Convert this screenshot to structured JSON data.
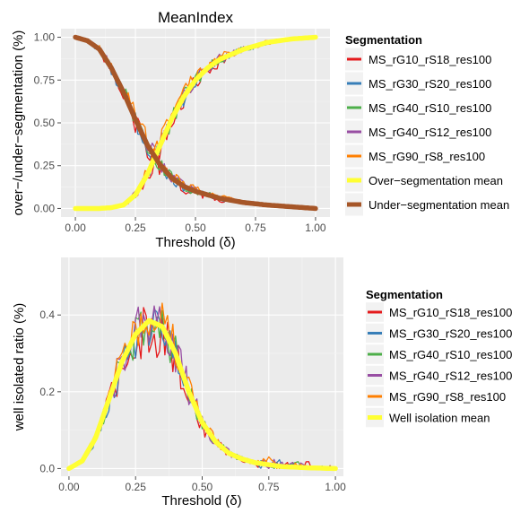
{
  "chart_data": [
    {
      "type": "line",
      "title": "MeanIndex",
      "xlabel": "Threshold (δ)",
      "ylabel": "over−/under−segmentation (%)",
      "xlim": [
        0,
        1
      ],
      "ylim": [
        -0.05,
        1.05
      ],
      "x_ticks": [
        "0.00",
        "0.25",
        "0.50",
        "0.75",
        "1.00"
      ],
      "y_ticks": [
        "0.00",
        "0.25",
        "0.50",
        "0.75",
        "1.00"
      ],
      "grid": true,
      "legend_position": "right",
      "legend_title": "Segmentation",
      "series": [
        {
          "name": "MS_rG10_rS18_res100",
          "color": "#e41a1c",
          "kind": "segmentation",
          "noise": 0.06
        },
        {
          "name": "MS_rG30_rS20_res100",
          "color": "#377eb8",
          "kind": "segmentation",
          "noise": 0.05
        },
        {
          "name": "MS_rG40_rS10_res100",
          "color": "#4daf4a",
          "kind": "segmentation",
          "noise": 0.05
        },
        {
          "name": "MS_rG40_rS12_res100",
          "color": "#984ea3",
          "kind": "segmentation",
          "noise": 0.05
        },
        {
          "name": "MS_rG90_rS8_res100",
          "color": "#ff7f00",
          "kind": "segmentation",
          "noise": 0.05
        },
        {
          "name": "Over−segmentation mean",
          "color": "#ffff33",
          "kind": "mean",
          "x": [
            0.0,
            0.1,
            0.15,
            0.2,
            0.25,
            0.3,
            0.35,
            0.4,
            0.45,
            0.5,
            0.55,
            0.6,
            0.7,
            0.8,
            0.9,
            1.0
          ],
          "y": [
            0.0,
            0.0,
            0.005,
            0.02,
            0.08,
            0.2,
            0.36,
            0.52,
            0.65,
            0.75,
            0.82,
            0.87,
            0.93,
            0.97,
            0.99,
            1.0
          ]
        },
        {
          "name": "Under−segmentation mean",
          "color": "#a65628",
          "kind": "mean",
          "x": [
            0.0,
            0.05,
            0.1,
            0.15,
            0.2,
            0.25,
            0.3,
            0.35,
            0.4,
            0.45,
            0.5,
            0.55,
            0.6,
            0.7,
            0.8,
            0.9,
            1.0
          ],
          "y": [
            1.0,
            0.98,
            0.93,
            0.82,
            0.68,
            0.52,
            0.37,
            0.26,
            0.18,
            0.13,
            0.1,
            0.08,
            0.06,
            0.035,
            0.02,
            0.01,
            0.0
          ]
        }
      ]
    },
    {
      "type": "line",
      "title": "",
      "xlabel": "Threshold (δ)",
      "ylabel": "well isolated ratio (%)",
      "xlim": [
        0,
        1
      ],
      "ylim": [
        -0.02,
        0.55
      ],
      "x_ticks": [
        "0.00",
        "0.25",
        "0.50",
        "0.75",
        "1.00"
      ],
      "y_ticks": [
        "0.0",
        "0.2",
        "0.4"
      ],
      "grid": true,
      "legend_position": "right",
      "legend_title": "Segmentation",
      "series": [
        {
          "name": "MS_rG10_rS18_res100",
          "color": "#e41a1c",
          "kind": "segmentation",
          "noise": 0.07
        },
        {
          "name": "MS_rG30_rS20_res100",
          "color": "#377eb8",
          "kind": "segmentation",
          "noise": 0.06
        },
        {
          "name": "MS_rG40_rS10_res100",
          "color": "#4daf4a",
          "kind": "segmentation",
          "noise": 0.06
        },
        {
          "name": "MS_rG40_rS12_res100",
          "color": "#984ea3",
          "kind": "segmentation",
          "noise": 0.07
        },
        {
          "name": "MS_rG90_rS8_res100",
          "color": "#ff7f00",
          "kind": "segmentation",
          "noise": 0.06
        },
        {
          "name": "Well isolation mean",
          "color": "#ffff33",
          "kind": "mean",
          "x": [
            0.0,
            0.05,
            0.1,
            0.15,
            0.2,
            0.25,
            0.3,
            0.35,
            0.4,
            0.45,
            0.5,
            0.55,
            0.6,
            0.65,
            0.7,
            0.8,
            0.9,
            1.0
          ],
          "y": [
            0.0,
            0.02,
            0.08,
            0.18,
            0.28,
            0.35,
            0.385,
            0.37,
            0.3,
            0.2,
            0.12,
            0.07,
            0.04,
            0.025,
            0.015,
            0.005,
            0.002,
            0.0
          ]
        }
      ]
    }
  ]
}
